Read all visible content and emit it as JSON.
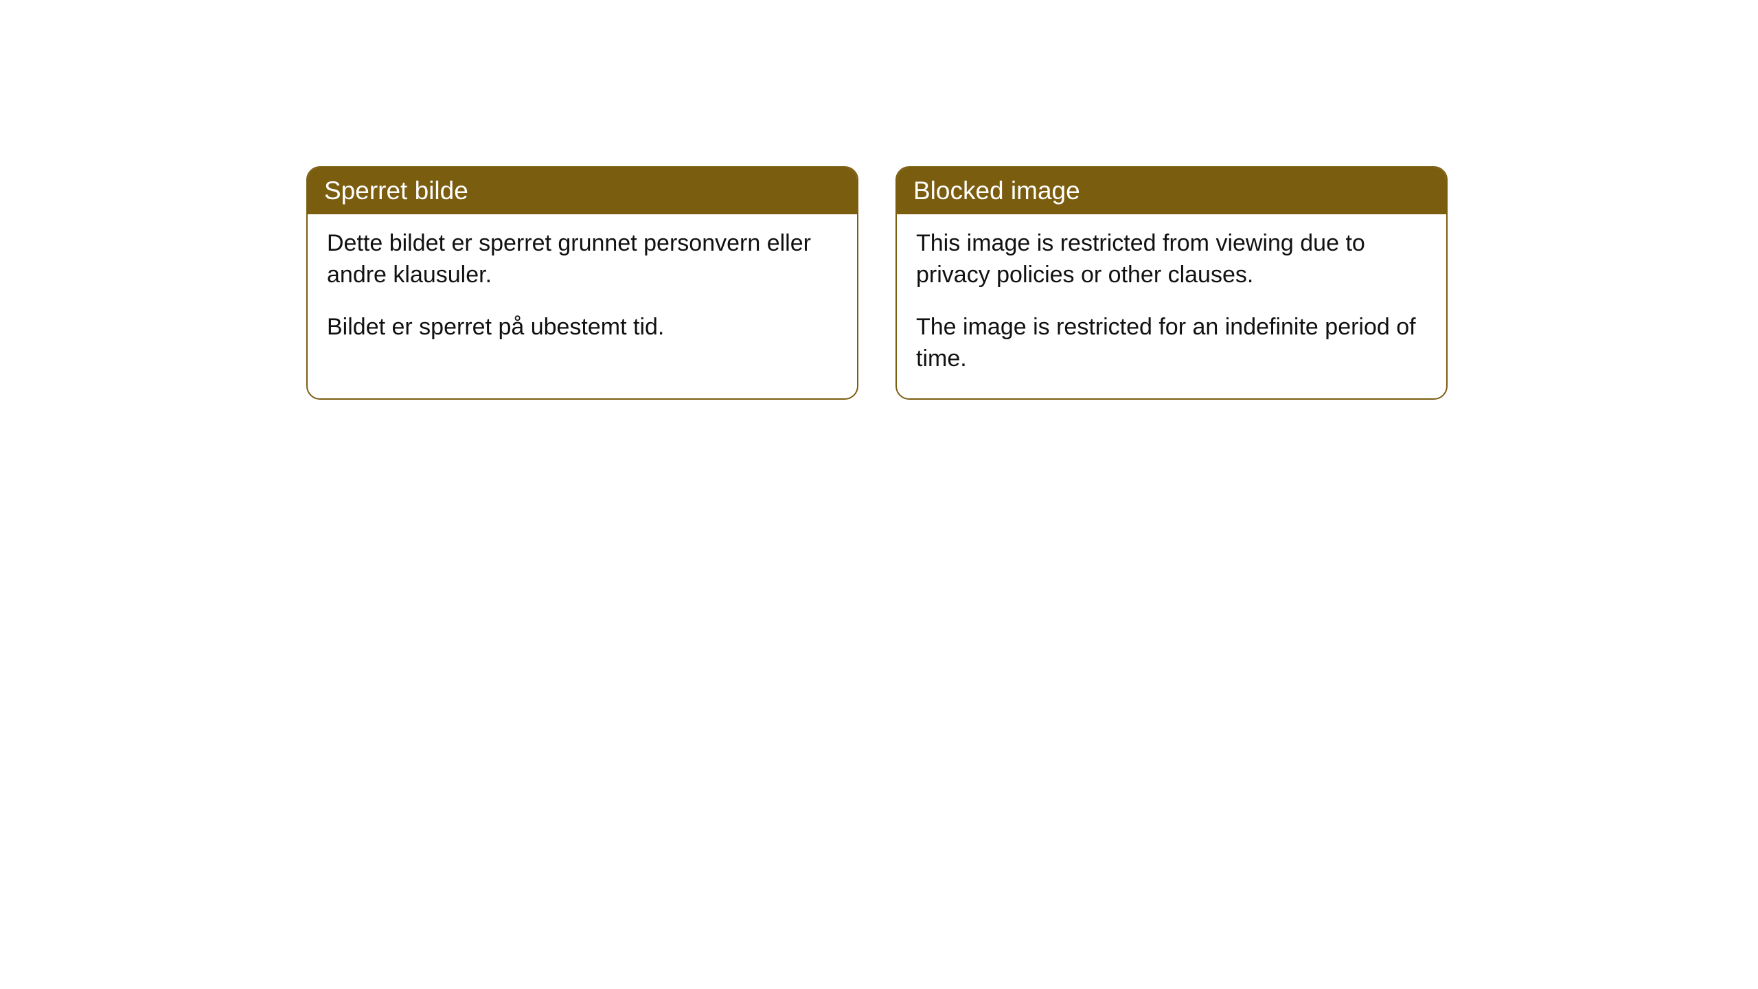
{
  "cards": [
    {
      "title": "Sperret bilde",
      "para1": "Dette bildet er sperret grunnet personvern eller andre klausuler.",
      "para2": "Bildet er sperret på ubestemt tid."
    },
    {
      "title": "Blocked image",
      "para1": "This image is restricted from viewing due to privacy policies or other clauses.",
      "para2": "The image is restricted for an indefinite period of time."
    }
  ],
  "style": {
    "header_bg": "#7a5d0f",
    "header_text_color": "#ffffff",
    "body_text_color": "#111111",
    "card_bg": "#ffffff",
    "border_color": "#7a5d0f",
    "border_radius": 20,
    "title_fontsize": 37,
    "body_fontsize": 34
  }
}
